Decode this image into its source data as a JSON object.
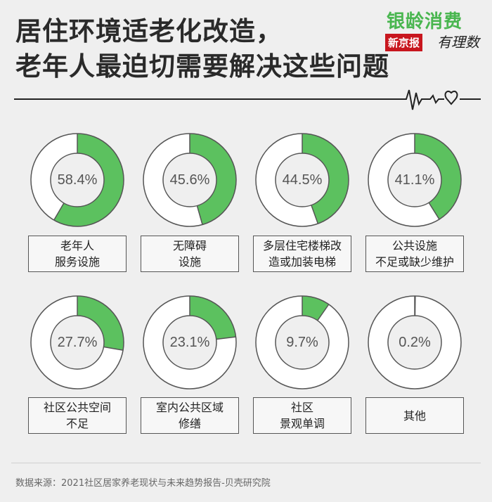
{
  "title": {
    "line1": "居住环境适老化改造，",
    "line2": "老年人最迫切需要解决这些问题"
  },
  "brand": {
    "name": "银龄消费",
    "paper": "新京报",
    "tagline": "有理数"
  },
  "colors": {
    "accent": "#5cc15f",
    "ring_bg": "#ffffff",
    "ring_stroke": "#555555",
    "background": "#efefef"
  },
  "chart_data": {
    "type": "pie",
    "variant": "donut",
    "unit": "%",
    "items": [
      {
        "pct_label": "58.4%",
        "value": 58.4,
        "label_lines": [
          "老年人",
          "服务设施"
        ]
      },
      {
        "pct_label": "45.6%",
        "value": 45.6,
        "label_lines": [
          "无障碍",
          "设施"
        ]
      },
      {
        "pct_label": "44.5%",
        "value": 44.5,
        "label_lines": [
          "多层住宅楼梯改",
          "造或加装电梯"
        ]
      },
      {
        "pct_label": "41.1%",
        "value": 41.1,
        "label_lines": [
          "公共设施",
          "不足或缺少维护"
        ]
      },
      {
        "pct_label": "27.7%",
        "value": 27.7,
        "label_lines": [
          "社区公共空间",
          "不足"
        ]
      },
      {
        "pct_label": "23.1%",
        "value": 23.1,
        "label_lines": [
          "室内公共区域",
          "修缮"
        ]
      },
      {
        "pct_label": "9.7%",
        "value": 9.7,
        "label_lines": [
          "社区",
          "景观单调"
        ]
      },
      {
        "pct_label": "0.2%",
        "value": 0.2,
        "label_lines": [
          "其他"
        ]
      }
    ]
  },
  "source": "数据来源：2021社区居家养老现状与未来趋势报告-贝壳研究院"
}
